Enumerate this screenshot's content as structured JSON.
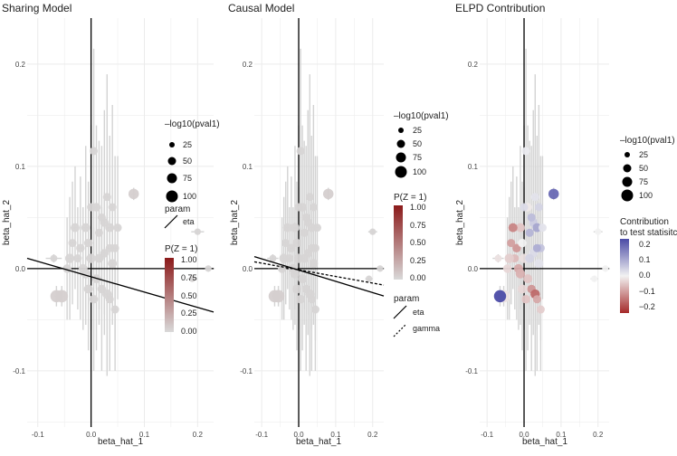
{
  "colors": {
    "grid": "#ebebeb",
    "point": "#bdbdbd",
    "errorbar": "#d3d3d3",
    "axis_line": "#000000",
    "pz_low": "#d9d9d9",
    "pz_high": "#8b1a1a",
    "contrib_low": "#a52a2a",
    "contrib_mid": "#f2f2f2",
    "contrib_high": "#4b4ba6"
  },
  "shared_axes": {
    "xlabel": "beta_hat_1",
    "ylabel": "beta_hat_2",
    "xlim": [
      -0.12,
      0.23
    ],
    "ylim": [
      -0.155,
      0.245
    ],
    "x_ticks": [
      -0.1,
      0.0,
      0.1,
      0.2
    ],
    "x_tick_labels": [
      "-0.1",
      "0.0",
      "0.1",
      "0.2"
    ],
    "y_ticks": [
      -0.1,
      0.0,
      0.1,
      0.2
    ],
    "y_tick_labels": [
      "-0.1",
      "0.0",
      "0.1",
      "0.2"
    ]
  },
  "chart_data": [
    {
      "type": "scatter",
      "title": "Sharing Model",
      "xlabel": "beta_hat_1",
      "ylabel": "beta_hat_2",
      "lines": [
        {
          "name": "eta",
          "style": "solid",
          "intercept": -0.008,
          "slope": -0.15
        }
      ],
      "legend_size": {
        "title": "–log10(pval1)",
        "labels": [
          "25",
          "50",
          "75",
          "100"
        ],
        "values": [
          25,
          50,
          75,
          100
        ]
      },
      "legend_param": {
        "title": "param",
        "entries": [
          {
            "label": "eta",
            "style": "solid"
          }
        ]
      },
      "legend_color": {
        "title": "P(Z = 1)",
        "labels": [
          "1.00",
          "0.75",
          "0.50",
          "0.25",
          "0.00"
        ],
        "range": [
          0,
          1
        ]
      }
    },
    {
      "type": "scatter",
      "title": "Causal Model",
      "xlabel": "beta_hat_1",
      "ylabel": "beta_hat_2",
      "lines": [
        {
          "name": "eta",
          "style": "solid",
          "intercept": -0.0015,
          "slope": -0.11
        },
        {
          "name": "gamma",
          "style": "dashed",
          "intercept": -0.0012,
          "slope": -0.065
        }
      ],
      "legend_size": {
        "title": "–log10(pval1)",
        "labels": [
          "25",
          "50",
          "75",
          "100"
        ],
        "values": [
          25,
          50,
          75,
          100
        ]
      },
      "legend_color": {
        "title": "P(Z = 1)",
        "labels": [
          "1.00",
          "0.75",
          "0.50",
          "0.25",
          "0.00"
        ],
        "range": [
          0,
          1
        ]
      },
      "legend_param": {
        "title": "param",
        "entries": [
          {
            "label": "eta",
            "style": "solid"
          },
          {
            "label": "gamma",
            "style": "dashed"
          }
        ]
      }
    },
    {
      "type": "scatter",
      "title": "ELPD Contribution",
      "xlabel": "beta_hat_1",
      "ylabel": "beta_hat_2",
      "lines": [],
      "legend_size": {
        "title": "–log10(pval1)",
        "labels": [
          "25",
          "50",
          "75",
          "100"
        ],
        "values": [
          25,
          50,
          75,
          100
        ]
      },
      "legend_color": {
        "title_lines": [
          "Contribution",
          "to test statisitc"
        ],
        "labels": [
          "0.2",
          "0.1",
          "0.0",
          "−0.1",
          "−0.2"
        ],
        "range": [
          -0.22,
          0.22
        ]
      }
    }
  ],
  "points": [
    {
      "x": -0.055,
      "y": -0.027,
      "se1": 0.004,
      "se2": 0.01,
      "pval": 95,
      "contrib": -0.02,
      "pz": 0.05
    },
    {
      "x": -0.065,
      "y": -0.027,
      "se1": 0.004,
      "se2": 0.01,
      "pval": 90,
      "contrib": 0.22,
      "pz": 0.05
    },
    {
      "x": 0.08,
      "y": 0.073,
      "se1": 0.004,
      "se2": 0.006,
      "pval": 60,
      "contrib": 0.18,
      "pz": 0.05
    },
    {
      "x": 0.005,
      "y": 0.115,
      "se1": 0.003,
      "se2": 0.1,
      "pval": 30,
      "contrib": 0.01,
      "pz": 0.02
    },
    {
      "x": 0.01,
      "y": 0.06,
      "se1": 0.003,
      "se2": 0.08,
      "pval": 35,
      "contrib": -0.01,
      "pz": 0.02
    },
    {
      "x": 0.015,
      "y": 0.035,
      "se1": 0.004,
      "se2": 0.09,
      "pval": 30,
      "contrib": 0.08,
      "pz": 0.02
    },
    {
      "x": 0.025,
      "y": 0.045,
      "se1": 0.004,
      "se2": 0.11,
      "pval": 35,
      "contrib": 0.05,
      "pz": 0.02
    },
    {
      "x": 0.03,
      "y": 0.07,
      "se1": 0.003,
      "se2": 0.12,
      "pval": 30,
      "contrib": 0.02,
      "pz": 0.02
    },
    {
      "x": 0.035,
      "y": 0.04,
      "se1": 0.004,
      "se2": 0.09,
      "pval": 40,
      "contrib": 0.1,
      "pz": 0.02
    },
    {
      "x": 0.04,
      "y": 0.06,
      "se1": 0.003,
      "se2": 0.1,
      "pval": 30,
      "contrib": 0.04,
      "pz": 0.02
    },
    {
      "x": 0.045,
      "y": 0.02,
      "se1": 0.004,
      "se2": 0.09,
      "pval": 30,
      "contrib": 0.06,
      "pz": 0.02
    },
    {
      "x": 0.05,
      "y": 0.04,
      "se1": 0.003,
      "se2": 0.07,
      "pval": 30,
      "contrib": 0.02,
      "pz": 0.02
    },
    {
      "x": -0.01,
      "y": 0.04,
      "se1": 0.004,
      "se2": 0.08,
      "pval": 40,
      "contrib": -0.05,
      "pz": 0.02
    },
    {
      "x": -0.02,
      "y": 0.02,
      "se1": 0.004,
      "se2": 0.07,
      "pval": 35,
      "contrib": -0.1,
      "pz": 0.02
    },
    {
      "x": -0.03,
      "y": 0.04,
      "se1": 0.003,
      "se2": 0.06,
      "pval": 40,
      "contrib": -0.12,
      "pz": 0.02
    },
    {
      "x": -0.025,
      "y": 0.01,
      "se1": 0.003,
      "se2": 0.05,
      "pval": 30,
      "contrib": -0.06,
      "pz": 0.02
    },
    {
      "x": -0.04,
      "y": 0.01,
      "se1": 0.004,
      "se2": 0.06,
      "pval": 45,
      "contrib": -0.04,
      "pz": 0.02
    },
    {
      "x": -0.045,
      "y": 0.0,
      "se1": 0.004,
      "se2": 0.05,
      "pval": 35,
      "contrib": -0.03,
      "pz": 0.02
    },
    {
      "x": -0.015,
      "y": 0.0,
      "se1": 0.004,
      "se2": 0.06,
      "pval": 40,
      "contrib": -0.08,
      "pz": 0.02
    },
    {
      "x": 0.0,
      "y": 0.01,
      "se1": 0.004,
      "se2": 0.07,
      "pval": 45,
      "contrib": -0.02,
      "pz": 0.02
    },
    {
      "x": 0.01,
      "y": -0.01,
      "se1": 0.004,
      "se2": 0.07,
      "pval": 40,
      "contrib": -0.05,
      "pz": 0.02
    },
    {
      "x": 0.02,
      "y": -0.02,
      "se1": 0.004,
      "se2": 0.08,
      "pval": 35,
      "contrib": -0.1,
      "pz": 0.02
    },
    {
      "x": 0.03,
      "y": -0.025,
      "se1": 0.004,
      "se2": 0.08,
      "pval": 45,
      "contrib": -0.15,
      "pz": 0.02
    },
    {
      "x": 0.035,
      "y": -0.03,
      "se1": 0.003,
      "se2": 0.07,
      "pval": 30,
      "contrib": -0.08,
      "pz": 0.02
    },
    {
      "x": 0.025,
      "y": 0.015,
      "se1": 0.003,
      "se2": 0.06,
      "pval": 35,
      "contrib": 0.03,
      "pz": 0.02
    },
    {
      "x": 0.04,
      "y": 0.005,
      "se1": 0.003,
      "se2": 0.06,
      "pval": 40,
      "contrib": 0.02,
      "pz": 0.02
    },
    {
      "x": 0.035,
      "y": 0.02,
      "se1": 0.004,
      "se2": 0.08,
      "pval": 30,
      "contrib": 0.09,
      "pz": 0.02
    },
    {
      "x": -0.005,
      "y": 0.025,
      "se1": 0.003,
      "se2": 0.06,
      "pval": 35,
      "contrib": 0.0,
      "pz": 0.02
    },
    {
      "x": 0.015,
      "y": 0.01,
      "se1": 0.003,
      "se2": 0.05,
      "pval": 40,
      "contrib": 0.04,
      "pz": 0.02
    },
    {
      "x": -0.035,
      "y": 0.025,
      "se1": 0.004,
      "se2": 0.06,
      "pval": 30,
      "contrib": -0.09,
      "pz": 0.02
    },
    {
      "x": 0.005,
      "y": -0.03,
      "se1": 0.004,
      "se2": 0.07,
      "pval": 35,
      "contrib": -0.05,
      "pz": 0.02
    },
    {
      "x": -0.005,
      "y": -0.02,
      "se1": 0.004,
      "se2": 0.06,
      "pval": 40,
      "contrib": -0.03,
      "pz": 0.02
    },
    {
      "x": 0.0,
      "y": 0.06,
      "se1": 0.004,
      "se2": 0.08,
      "pval": 30,
      "contrib": 0.03,
      "pz": 0.02
    },
    {
      "x": 0.02,
      "y": 0.05,
      "se1": 0.003,
      "se2": 0.07,
      "pval": 30,
      "contrib": 0.07,
      "pz": 0.02
    },
    {
      "x": -0.01,
      "y": -0.005,
      "se1": 0.004,
      "se2": 0.05,
      "pval": 45,
      "contrib": -0.07,
      "pz": 0.02
    },
    {
      "x": 0.045,
      "y": -0.04,
      "se1": 0.004,
      "se2": 0.06,
      "pval": 30,
      "contrib": -0.04,
      "pz": 0.02
    },
    {
      "x": -0.07,
      "y": 0.01,
      "se1": 0.015,
      "se2": 0.004,
      "pval": 20,
      "contrib": -0.02,
      "pz": 0.02
    },
    {
      "x": 0.2,
      "y": 0.036,
      "se1": 0.012,
      "se2": 0.003,
      "pval": 15,
      "contrib": 0.0,
      "pz": 0.02
    },
    {
      "x": 0.19,
      "y": -0.01,
      "se1": 0.01,
      "se2": 0.003,
      "pval": 15,
      "contrib": 0.0,
      "pz": 0.02
    },
    {
      "x": 0.22,
      "y": 0.0,
      "se1": 0.012,
      "se2": 0.003,
      "pval": 15,
      "contrib": 0.0,
      "pz": 0.02
    }
  ]
}
